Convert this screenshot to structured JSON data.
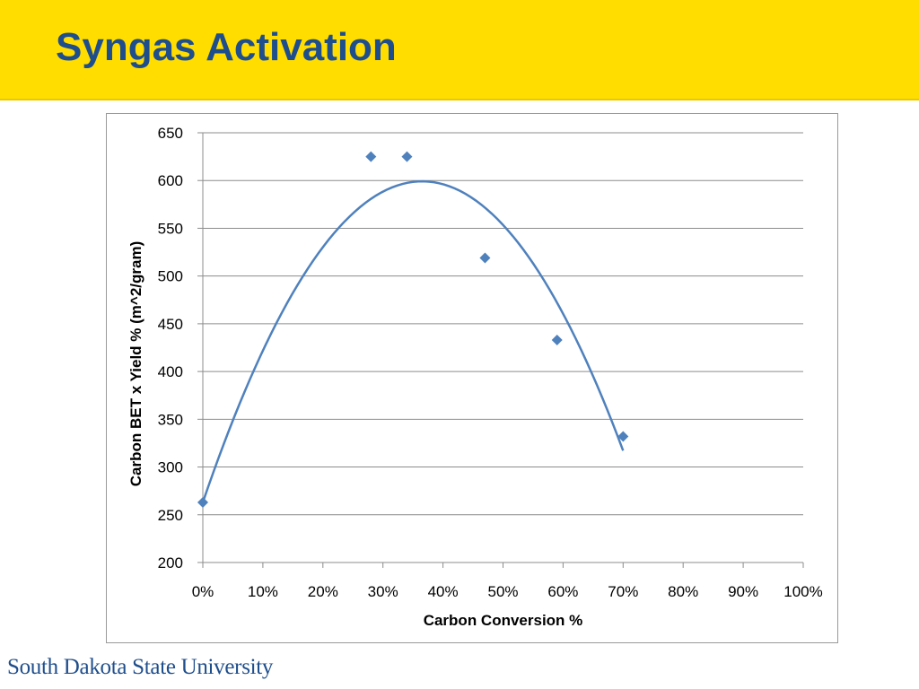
{
  "slide": {
    "title": "Syngas Activation",
    "footer": "South Dakota State University"
  },
  "colors": {
    "band": "#FFDD00",
    "title": "#1F4E8C",
    "series": "#4F81BD"
  },
  "chart_data": {
    "type": "scatter",
    "title": "",
    "xlabel": "Carbon Conversion %",
    "ylabel": "Carbon BET x Yield % (m^2/gram)",
    "xlim": [
      0,
      1
    ],
    "ylim": [
      200,
      650
    ],
    "x_ticks": [
      0,
      0.1,
      0.2,
      0.3,
      0.4,
      0.5,
      0.6,
      0.7,
      0.8,
      0.9,
      1.0
    ],
    "x_tick_labels": [
      "0%",
      "10%",
      "20%",
      "30%",
      "40%",
      "50%",
      "60%",
      "70%",
      "80%",
      "90%",
      "100%"
    ],
    "y_ticks": [
      200,
      250,
      300,
      350,
      400,
      450,
      500,
      550,
      600,
      650
    ],
    "y_tick_labels": [
      "200",
      "250",
      "300",
      "350",
      "400",
      "450",
      "500",
      "550",
      "600",
      "650"
    ],
    "grid": "horizontal",
    "legend": "none",
    "series": [
      {
        "marker": "diamond",
        "x": [
          0.0,
          0.28,
          0.34,
          0.47,
          0.59,
          0.7
        ],
        "y": [
          263,
          625,
          625,
          519,
          433,
          332
        ]
      }
    ],
    "trendline": {
      "kind": "polynomial-2",
      "x_range": [
        0.0,
        0.7
      ],
      "coefficients": [
        263,
        1840,
        -2518
      ]
    }
  }
}
